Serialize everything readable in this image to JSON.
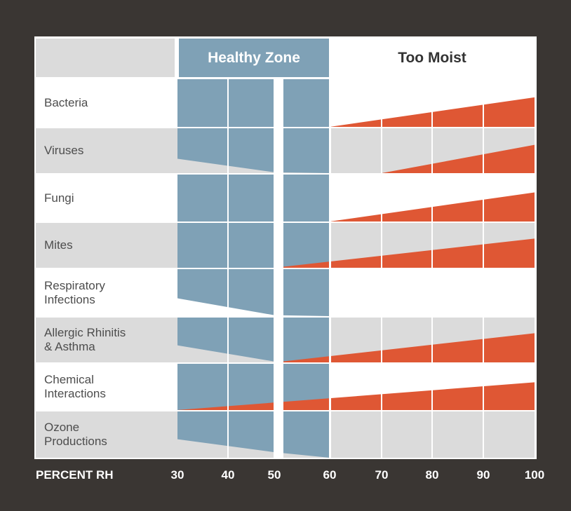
{
  "header": {
    "healthy_zone": "Healthy Zone",
    "too_moist": "Too Moist"
  },
  "axis": {
    "label": "PERCENT RH",
    "ticks": [
      "30",
      "40",
      "50",
      "60",
      "70",
      "80",
      "90",
      "100"
    ]
  },
  "colors": {
    "healthy_blue": "#7fa1b6",
    "moist_orange": "#df5734",
    "row_gray": "#dbdbdb",
    "background": "#3a3633",
    "text": "#4d4d4d"
  },
  "rows": [
    {
      "label": [
        "Bacteria"
      ],
      "blue": [
        [
          30,
          0
        ],
        [
          50,
          0
        ],
        [
          60,
          0
        ]
      ],
      "orange": [
        [
          60,
          0
        ],
        [
          100,
          0.62
        ]
      ]
    },
    {
      "label": [
        "Viruses"
      ],
      "blue": [
        [
          30,
          0.32
        ],
        [
          50,
          0.02
        ],
        [
          60,
          0
        ]
      ],
      "orange": [
        [
          70,
          0
        ],
        [
          100,
          0.63
        ]
      ]
    },
    {
      "label": [
        "Fungi"
      ],
      "blue": [
        [
          30,
          0
        ],
        [
          50,
          0
        ],
        [
          60,
          0
        ]
      ],
      "orange": [
        [
          60,
          0
        ],
        [
          100,
          0.62
        ]
      ]
    },
    {
      "label": [
        "Mites"
      ],
      "blue": [
        [
          30,
          0
        ],
        [
          50,
          0
        ],
        [
          60,
          0
        ]
      ],
      "orange": [
        [
          50,
          0
        ],
        [
          100,
          0.65
        ]
      ]
    },
    {
      "label": [
        "Respiratory",
        "Infections"
      ],
      "blue": [
        [
          30,
          0.38
        ],
        [
          50,
          0.02
        ],
        [
          60,
          0
        ]
      ],
      "orange": []
    },
    {
      "label": [
        "Allergic Rhinitis",
        "& Asthma"
      ],
      "blue": [
        [
          30,
          0.38
        ],
        [
          50,
          0.02
        ],
        [
          60,
          0
        ]
      ],
      "orange": [
        [
          50,
          0
        ],
        [
          100,
          0.65
        ]
      ]
    },
    {
      "label": [
        "Chemical",
        "Interactions"
      ],
      "blue": [
        [
          30,
          0
        ],
        [
          50,
          0
        ],
        [
          60,
          0
        ]
      ],
      "orange": [
        [
          30,
          0
        ],
        [
          100,
          0.6
        ]
      ]
    },
    {
      "label": [
        "Ozone",
        "Productions"
      ],
      "blue": [
        [
          30,
          0.4
        ],
        [
          50,
          0.12
        ],
        [
          60,
          0
        ]
      ],
      "orange": []
    }
  ]
}
